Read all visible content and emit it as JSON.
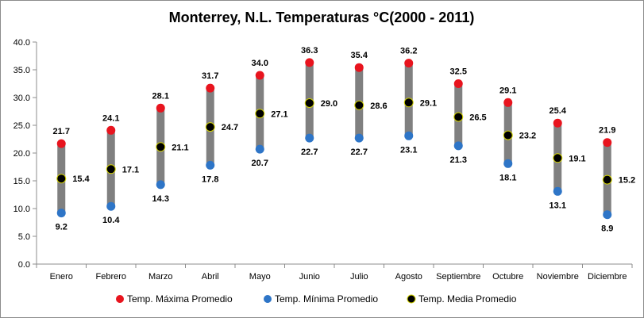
{
  "chart_data": {
    "type": "scatter",
    "title": "Monterrey, N.L. Temperaturas °C(2000 - 2011)",
    "xlabel": "",
    "ylabel": "",
    "ylim": [
      0,
      40
    ],
    "yticks": [
      "0.0",
      "5.0",
      "10.0",
      "15.0",
      "20.0",
      "25.0",
      "30.0",
      "35.0",
      "40.0"
    ],
    "grid": false,
    "legend_position": "bottom",
    "categories": [
      "Enero",
      "Febrero",
      "Marzo",
      "Abril",
      "Mayo",
      "Junio",
      "Julio",
      "Agosto",
      "Septiembre",
      "Octubre",
      "Noviembre",
      "Diciembre"
    ],
    "series": [
      {
        "name": "Temp. Máxima Promedio",
        "color": "#e8141e",
        "values": [
          21.7,
          24.1,
          28.1,
          31.7,
          34.0,
          36.3,
          35.4,
          36.2,
          32.5,
          29.1,
          25.4,
          21.9
        ],
        "labels": [
          "21.7",
          "24.1",
          "28.1",
          "31.7",
          "34.0",
          "36.3",
          "35.4",
          "36.2",
          "32.5",
          "29.1",
          "25.4",
          "21.9"
        ]
      },
      {
        "name": "Temp. Mínima Promedio",
        "color": "#2e75c7",
        "values": [
          9.2,
          10.4,
          14.3,
          17.8,
          20.7,
          22.7,
          22.7,
          23.1,
          21.3,
          18.1,
          13.1,
          8.9
        ],
        "labels": [
          "9.2",
          "10.4",
          "14.3",
          "17.8",
          "20.7",
          "22.7",
          "22.7",
          "23.1",
          "21.3",
          "18.1",
          "13.1",
          "8.9"
        ]
      },
      {
        "name": "Temp. Media Promedio",
        "color": "#000000",
        "values": [
          15.4,
          17.1,
          21.1,
          24.7,
          27.1,
          29.0,
          28.6,
          29.1,
          26.5,
          23.2,
          19.1,
          15.2
        ],
        "labels": [
          "15.4",
          "17.1",
          "21.1",
          "24.7",
          "27.1",
          "29.0",
          "28.6",
          "29.1",
          "26.5",
          "23.2",
          "19.1",
          "15.2"
        ]
      }
    ],
    "range_bar_color": "#808080"
  }
}
